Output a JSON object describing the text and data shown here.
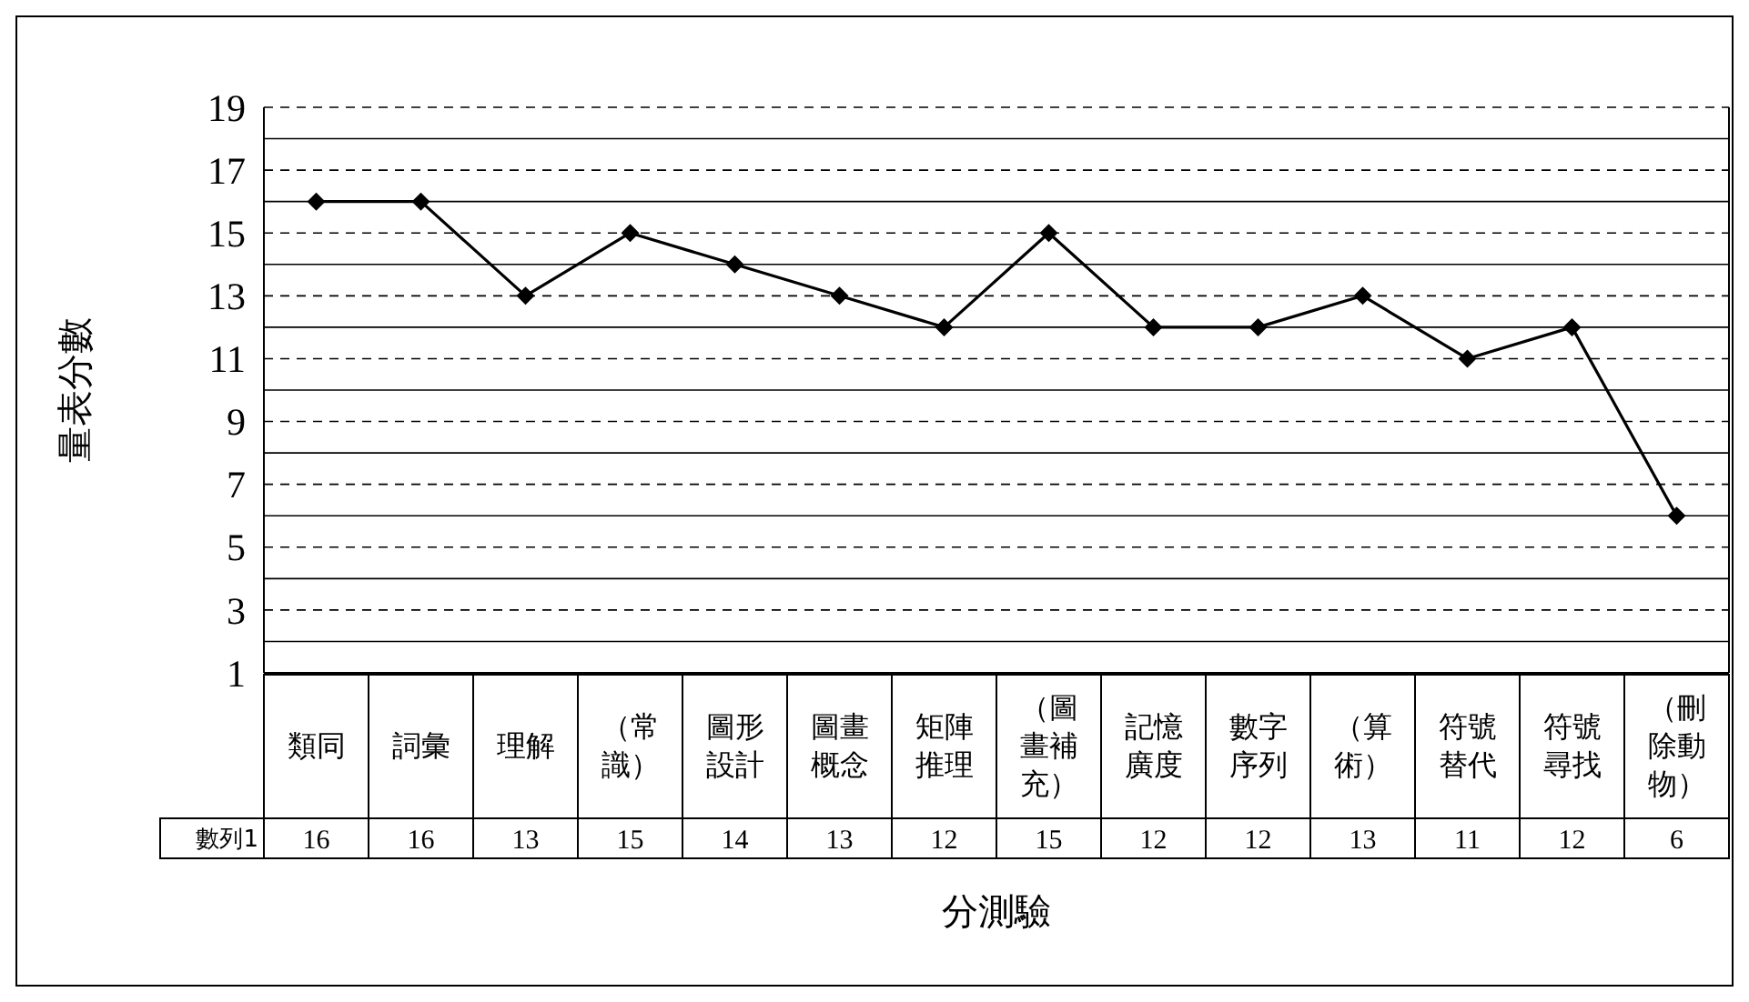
{
  "chart_data": {
    "type": "line",
    "xlabel": "分測驗",
    "ylabel": "量表分數",
    "categories": [
      "類同",
      "詞彙",
      "理解",
      "（常識）",
      "圖形設計",
      "圖畫概念",
      "矩陣推理",
      "（圖畫補充）",
      "記憶廣度",
      "數字序列",
      "（算術）",
      "符號替代",
      "符號尋找",
      "（刪除動物）"
    ],
    "series": [
      {
        "name": "數列1",
        "color": "#000000",
        "values": [
          16,
          16,
          13,
          15,
          14,
          13,
          12,
          15,
          12,
          12,
          13,
          11,
          12,
          6
        ]
      }
    ],
    "ylim": [
      1,
      19
    ],
    "yticks": [
      1,
      3,
      5,
      7,
      9,
      11,
      13,
      15,
      17,
      19
    ],
    "grid": "y",
    "marker": "diamond",
    "line_style": "solid",
    "data_labels": true,
    "legend": "bottom"
  }
}
